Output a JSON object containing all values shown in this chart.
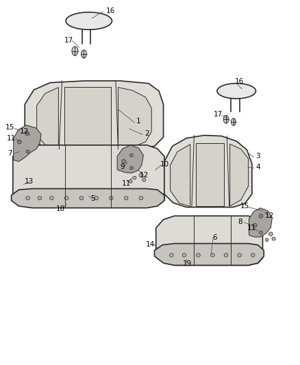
{
  "background_color": "#ffffff",
  "line_color": "#2a2a2a",
  "label_color": "#000000",
  "fig_width": 4.38,
  "fig_height": 5.33,
  "dpi": 100,
  "font_size": 7.5
}
